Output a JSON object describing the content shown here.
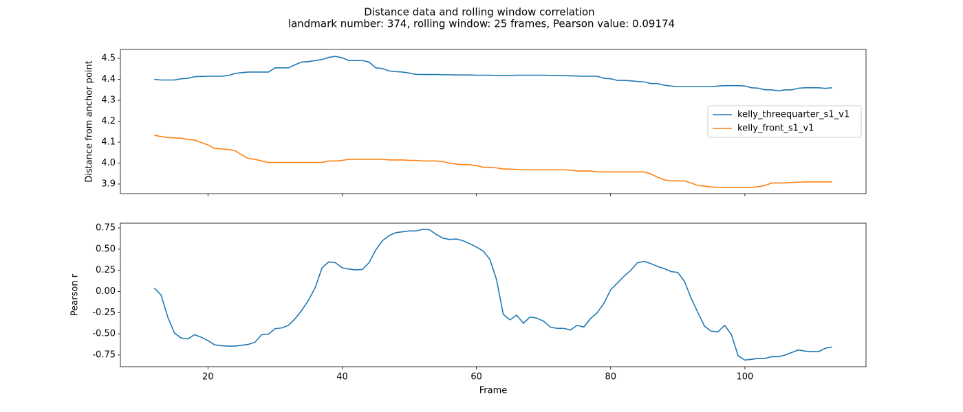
{
  "title": "Distance data and rolling window correlation",
  "subtitle": "landmark number: 374, rolling window: 25 frames, Pearson value: 0.09174",
  "chart_data": [
    {
      "type": "line",
      "ylabel": "Distance from anchor point",
      "x": [
        12,
        13,
        14,
        15,
        16,
        17,
        18,
        19,
        20,
        21,
        22,
        23,
        24,
        25,
        26,
        27,
        28,
        29,
        30,
        31,
        32,
        33,
        34,
        35,
        36,
        37,
        38,
        39,
        40,
        41,
        42,
        43,
        44,
        45,
        46,
        47,
        48,
        49,
        50,
        51,
        52,
        53,
        54,
        55,
        56,
        57,
        58,
        59,
        60,
        61,
        62,
        63,
        64,
        65,
        66,
        67,
        68,
        69,
        70,
        71,
        72,
        73,
        74,
        75,
        76,
        77,
        78,
        79,
        80,
        81,
        82,
        83,
        84,
        85,
        86,
        87,
        88,
        89,
        90,
        91,
        92,
        93,
        94,
        95,
        96,
        97,
        98,
        99,
        100,
        101,
        102,
        103,
        104,
        105,
        106,
        107,
        108,
        109,
        110,
        111,
        112,
        113
      ],
      "series": [
        {
          "name": "kelly_threequarter_s1_v1",
          "color": "#1f77b4",
          "values": [
            4.4,
            4.397,
            4.397,
            4.397,
            4.403,
            4.405,
            4.413,
            4.414,
            4.415,
            4.415,
            4.415,
            4.418,
            4.428,
            4.432,
            4.435,
            4.435,
            4.435,
            4.435,
            4.455,
            4.455,
            4.455,
            4.47,
            4.483,
            4.485,
            4.49,
            4.495,
            4.505,
            4.51,
            4.503,
            4.49,
            4.49,
            4.49,
            4.483,
            4.455,
            4.452,
            4.44,
            4.437,
            4.435,
            4.43,
            4.424,
            4.423,
            4.423,
            4.423,
            4.422,
            4.422,
            4.421,
            4.421,
            4.421,
            4.42,
            4.42,
            4.42,
            4.419,
            4.419,
            4.419,
            4.42,
            4.42,
            4.42,
            4.42,
            4.42,
            4.419,
            4.419,
            4.418,
            4.417,
            4.416,
            4.415,
            4.415,
            4.415,
            4.405,
            4.403,
            4.395,
            4.395,
            4.393,
            4.39,
            4.388,
            4.38,
            4.38,
            4.372,
            4.368,
            4.365,
            4.365,
            4.365,
            4.365,
            4.365,
            4.365,
            4.368,
            4.37,
            4.37,
            4.37,
            4.368,
            4.36,
            4.358,
            4.35,
            4.35,
            4.345,
            4.35,
            4.35,
            4.358,
            4.36,
            4.36,
            4.36,
            4.357,
            4.36
          ]
        },
        {
          "name": "kelly_front_s1_v1",
          "color": "#ff7f0e",
          "values": [
            4.133,
            4.127,
            4.122,
            4.12,
            4.119,
            4.113,
            4.11,
            4.098,
            4.087,
            4.07,
            4.068,
            4.065,
            4.06,
            4.04,
            4.022,
            4.018,
            4.01,
            4.003,
            4.003,
            4.003,
            4.003,
            4.003,
            4.003,
            4.003,
            4.003,
            4.003,
            4.01,
            4.01,
            4.013,
            4.018,
            4.018,
            4.018,
            4.018,
            4.018,
            4.018,
            4.015,
            4.015,
            4.015,
            4.013,
            4.013,
            4.01,
            4.01,
            4.01,
            4.007,
            4.0,
            3.995,
            3.993,
            3.992,
            3.988,
            3.98,
            3.98,
            3.977,
            3.972,
            3.971,
            3.97,
            3.968,
            3.968,
            3.968,
            3.968,
            3.968,
            3.968,
            3.968,
            3.966,
            3.962,
            3.962,
            3.962,
            3.958,
            3.958,
            3.958,
            3.958,
            3.958,
            3.958,
            3.958,
            3.958,
            3.948,
            3.932,
            3.92,
            3.915,
            3.915,
            3.915,
            3.905,
            3.893,
            3.89,
            3.886,
            3.884,
            3.884,
            3.884,
            3.884,
            3.884,
            3.884,
            3.887,
            3.893,
            3.905,
            3.905,
            3.905,
            3.907,
            3.909,
            3.91,
            3.91,
            3.91,
            3.91,
            3.91
          ]
        }
      ],
      "xlim": [
        6.95,
        118.05
      ],
      "xticks": [
        20,
        40,
        60,
        80,
        100
      ],
      "show_xtick_labels": false,
      "ylim": [
        3.854,
        4.543
      ],
      "yticks": [
        3.9,
        {
          "value": 4,
          "label": "4.0"
        },
        4.1,
        4.2,
        4.3,
        4.4,
        4.5
      ],
      "legend": "center right"
    },
    {
      "type": "line",
      "xlabel": "Frame",
      "ylabel": "Pearson r",
      "x": [
        12,
        13,
        14,
        15,
        16,
        17,
        18,
        19,
        20,
        21,
        22,
        23,
        24,
        25,
        26,
        27,
        28,
        29,
        30,
        31,
        32,
        33,
        34,
        35,
        36,
        37,
        38,
        39,
        40,
        41,
        42,
        43,
        44,
        45,
        46,
        47,
        48,
        49,
        50,
        51,
        52,
        53,
        54,
        55,
        56,
        57,
        58,
        59,
        60,
        61,
        62,
        63,
        64,
        65,
        66,
        67,
        68,
        69,
        70,
        71,
        72,
        73,
        74,
        75,
        76,
        77,
        78,
        79,
        80,
        81,
        82,
        83,
        84,
        85,
        86,
        87,
        88,
        89,
        90,
        91,
        92,
        93,
        94,
        95,
        96,
        97,
        98,
        99,
        100,
        101,
        102,
        103,
        104,
        105,
        106,
        107,
        108,
        109,
        110,
        111,
        112,
        113
      ],
      "color": "#1f77b4",
      "values": [
        0.04,
        -0.04,
        -0.3,
        -0.49,
        -0.55,
        -0.56,
        -0.51,
        -0.54,
        -0.58,
        -0.63,
        -0.64,
        -0.645,
        -0.645,
        -0.635,
        -0.625,
        -0.6,
        -0.51,
        -0.505,
        -0.44,
        -0.43,
        -0.4,
        -0.32,
        -0.22,
        -0.1,
        0.05,
        0.28,
        0.35,
        0.34,
        0.28,
        0.265,
        0.255,
        0.26,
        0.34,
        0.49,
        0.6,
        0.66,
        0.695,
        0.705,
        0.715,
        0.715,
        0.735,
        0.73,
        0.675,
        0.63,
        0.615,
        0.62,
        0.6,
        0.565,
        0.525,
        0.48,
        0.38,
        0.14,
        -0.27,
        -0.335,
        -0.28,
        -0.375,
        -0.3,
        -0.315,
        -0.35,
        -0.42,
        -0.435,
        -0.435,
        -0.455,
        -0.4,
        -0.42,
        -0.32,
        -0.25,
        -0.14,
        0.02,
        0.1,
        0.18,
        0.25,
        0.34,
        0.355,
        0.33,
        0.295,
        0.27,
        0.235,
        0.225,
        0.12,
        -0.08,
        -0.25,
        -0.41,
        -0.47,
        -0.475,
        -0.4,
        -0.51,
        -0.76,
        -0.81,
        -0.8,
        -0.79,
        -0.79,
        -0.77,
        -0.77,
        -0.75,
        -0.72,
        -0.69,
        -0.705,
        -0.71,
        -0.71,
        -0.67,
        -0.655
      ],
      "xlim": [
        6.95,
        118.05
      ],
      "xticks": [
        20,
        40,
        60,
        80,
        100
      ],
      "show_xtick_labels": true,
      "ylim": [
        -0.888,
        0.807
      ],
      "yticks": [
        -0.75,
        {
          "value": -0.5,
          "label": "-0.50"
        },
        -0.25,
        {
          "value": 0,
          "label": "0.00"
        },
        0.25,
        {
          "value": 0.5,
          "label": "0.50"
        },
        0.75
      ]
    }
  ]
}
